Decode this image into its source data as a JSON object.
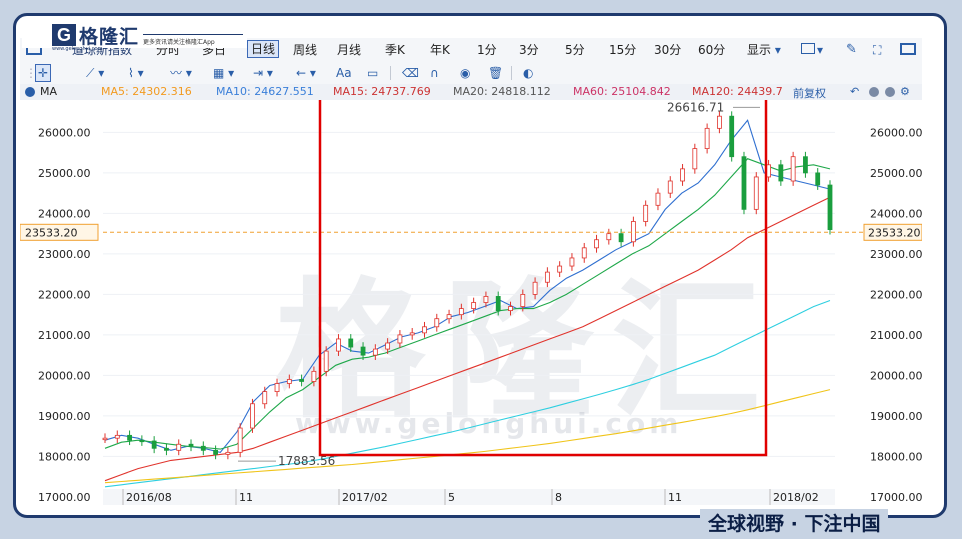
{
  "brand": {
    "logo_letter": "G",
    "name": "格隆汇",
    "url": "www.gelonghui.com",
    "slogan": "更多资讯请关注格隆汇App",
    "footer_slogan": "全球视野 · 下注中国",
    "watermark": "格隆汇",
    "watermark_url": "www.gelonghui.com"
  },
  "toolbar": {
    "symbol": "道琼斯指数",
    "periods": [
      "分时",
      "多日",
      "日线",
      "周线",
      "月线",
      "季K",
      "年K",
      "1分",
      "3分",
      "5分",
      "15分",
      "30分",
      "60分"
    ],
    "active_period": "日线",
    "display_label": "显示"
  },
  "drawing_tools": {
    "text_tool": "Aa"
  },
  "indicator_bar": {
    "name": "MA",
    "ma5": "MA5: 24302.316",
    "ma10": "MA10: 24627.551",
    "ma15": "MA15: 24737.769",
    "ma20": "MA20: 24818.112",
    "ma60": "MA60: 25104.842",
    "ma120": "MA120: 24439.7",
    "adjust": "前复权",
    "colors": {
      "ma5": "#f29a1f",
      "ma10": "#3a7fd9",
      "ma15": "#cc3333",
      "ma20": "#555555",
      "ma60": "#cc3366",
      "ma120": "#cc3333"
    }
  },
  "chart_data": {
    "type": "candlestick-line",
    "ylim": [
      16800,
      26800
    ],
    "y_ticks": [
      "26000.00",
      "25000.00",
      "24000.00",
      "23000.00",
      "22000.00",
      "21000.00",
      "20000.00",
      "19000.00",
      "18000.00",
      "17000.00"
    ],
    "x_labels": [
      "2016/08",
      "11",
      "2017/02",
      "5",
      "8",
      "11",
      "2018/02"
    ],
    "max_label": "26616.71",
    "min_label": "17883.56",
    "current_price": "23533.20",
    "series": [
      {
        "color": "#2f6fd0",
        "values": [
          18400,
          18520,
          18450,
          18300,
          18150,
          18250,
          18200,
          18100,
          18600,
          19350,
          19750,
          19850,
          19900,
          20500,
          20800,
          20600,
          20550,
          20750,
          20950,
          21050,
          21200,
          21450,
          21550,
          21700,
          21850,
          21650,
          21700,
          22100,
          22400,
          22600,
          22850,
          23100,
          23300,
          23500,
          24100,
          24500,
          24750,
          25200,
          25800,
          26300,
          25000,
          24900,
          24800,
          24700,
          24600
        ]
      },
      {
        "color": "#1fa84a",
        "values": [
          18200,
          18350,
          18400,
          18350,
          18300,
          18250,
          18220,
          18180,
          18300,
          18700,
          19100,
          19450,
          19650,
          19950,
          20250,
          20400,
          20450,
          20550,
          20700,
          20850,
          21000,
          21150,
          21300,
          21450,
          21600,
          21650,
          21650,
          21800,
          22000,
          22250,
          22500,
          22750,
          23000,
          23200,
          23500,
          23800,
          24100,
          24450,
          24900,
          25350,
          25200,
          25050,
          25150,
          25200,
          25100
        ]
      },
      {
        "color": "#e0332c",
        "values": [
          17400,
          17550,
          17700,
          17800,
          17900,
          17950,
          18000,
          18050,
          18100,
          18200,
          18350,
          18500,
          18650,
          18800,
          18950,
          19100,
          19250,
          19400,
          19550,
          19700,
          19850,
          20000,
          20150,
          20300,
          20450,
          20600,
          20750,
          20900,
          21050,
          21200,
          21400,
          21600,
          21800,
          22000,
          22200,
          22400,
          22600,
          22850,
          23100,
          23400,
          23600,
          23800,
          24000,
          24200,
          24400
        ]
      },
      {
        "color": "#2ecfe0",
        "values": [
          17250,
          17300,
          17350,
          17400,
          17450,
          17500,
          17550,
          17600,
          17650,
          17700,
          17750,
          17800,
          17850,
          17920,
          18000,
          18080,
          18160,
          18240,
          18330,
          18420,
          18510,
          18600,
          18700,
          18800,
          18900,
          19000,
          19100,
          19200,
          19310,
          19420,
          19530,
          19650,
          19770,
          19900,
          20050,
          20200,
          20350,
          20500,
          20700,
          20900,
          21100,
          21300,
          21500,
          21700,
          21850
        ]
      },
      {
        "color": "#f0c419",
        "values": [
          17350,
          17380,
          17410,
          17440,
          17470,
          17500,
          17530,
          17560,
          17590,
          17620,
          17650,
          17680,
          17710,
          17740,
          17770,
          17800,
          17840,
          17880,
          17920,
          17960,
          18000,
          18040,
          18080,
          18120,
          18170,
          18220,
          18270,
          18320,
          18380,
          18440,
          18500,
          18560,
          18630,
          18700,
          18770,
          18840,
          18910,
          18980,
          19060,
          19150,
          19250,
          19350,
          19450,
          19550,
          19650
        ]
      }
    ],
    "candles": [
      18450,
      18520,
      18400,
      18380,
      18200,
      18150,
      18300,
      18250,
      18150,
      18050,
      18100,
      18700,
      19300,
      19600,
      19800,
      19900,
      19850,
      20100,
      20600,
      20900,
      20700,
      20500,
      20650,
      20800,
      21000,
      21050,
      21200,
      21400,
      21500,
      21650,
      21800,
      21950,
      21600,
      21700,
      22000,
      22300,
      22550,
      22700,
      22900,
      23150,
      23350,
      23500,
      23300,
      23800,
      24200,
      24500,
      24800,
      25100,
      25600,
      26100,
      26400,
      25400,
      24100,
      24900,
      25200,
      24800,
      25400,
      25000,
      24700,
      23600
    ]
  }
}
